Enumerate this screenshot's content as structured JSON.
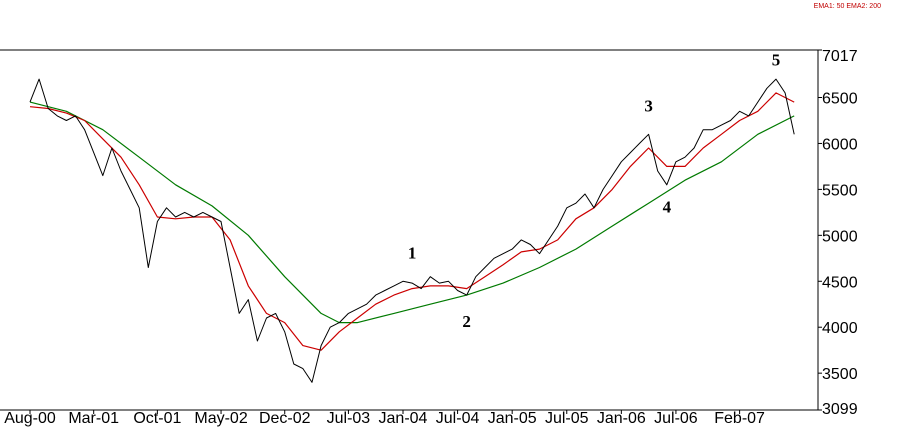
{
  "chart_data": {
    "type": "line",
    "legend": {
      "text": "EMA1: 50 EMA2: 200",
      "placement": "top-right"
    },
    "x_labels": [
      "Aug-00",
      "Mar-01",
      "Oct-01",
      "May-02",
      "Dec-02",
      "Jul-03",
      "Jan-04",
      "Jul-04",
      "Jan-05",
      "Jul-05",
      "Jan-06",
      "Jul-06",
      "Feb-07"
    ],
    "x_range": [
      "Aug-00",
      "Jun-07"
    ],
    "yticks": [
      3099,
      3500,
      4000,
      4500,
      5000,
      5500,
      6000,
      6500,
      7017
    ],
    "ylim": [
      3099,
      7017
    ],
    "grid": false,
    "series": [
      {
        "key": "price",
        "color": "#000000",
        "points": [
          [
            "Aug-00",
            6450
          ],
          [
            "Sep-00",
            6700
          ],
          [
            "Oct-00",
            6380
          ],
          [
            "Nov-00",
            6300
          ],
          [
            "Dec-00",
            6250
          ],
          [
            "Jan-01",
            6300
          ],
          [
            "Feb-01",
            6150
          ],
          [
            "Mar-01",
            5900
          ],
          [
            "Apr-01",
            5650
          ],
          [
            "May-01",
            5950
          ],
          [
            "Jun-01",
            5700
          ],
          [
            "Jul-01",
            5500
          ],
          [
            "Aug-01",
            5300
          ],
          [
            "Sep-01",
            4650
          ],
          [
            "Oct-01",
            5150
          ],
          [
            "Nov-01",
            5300
          ],
          [
            "Dec-01",
            5200
          ],
          [
            "Jan-02",
            5250
          ],
          [
            "Feb-02",
            5200
          ],
          [
            "Mar-02",
            5250
          ],
          [
            "Apr-02",
            5200
          ],
          [
            "May-02",
            5150
          ],
          [
            "Jun-02",
            4650
          ],
          [
            "Jul-02",
            4150
          ],
          [
            "Aug-02",
            4300
          ],
          [
            "Sep-02",
            3850
          ],
          [
            "Oct-02",
            4100
          ],
          [
            "Nov-02",
            4150
          ],
          [
            "Dec-02",
            3950
          ],
          [
            "Jan-03",
            3600
          ],
          [
            "Feb-03",
            3550
          ],
          [
            "Mar-03",
            3400
          ],
          [
            "Apr-03",
            3800
          ],
          [
            "May-03",
            4000
          ],
          [
            "Jun-03",
            4050
          ],
          [
            "Jul-03",
            4150
          ],
          [
            "Aug-03",
            4200
          ],
          [
            "Sep-03",
            4250
          ],
          [
            "Oct-03",
            4350
          ],
          [
            "Nov-03",
            4400
          ],
          [
            "Dec-03",
            4450
          ],
          [
            "Jan-04",
            4500
          ],
          [
            "Feb-04",
            4480
          ],
          [
            "Mar-04",
            4420
          ],
          [
            "Apr-04",
            4550
          ],
          [
            "May-04",
            4480
          ],
          [
            "Jun-04",
            4500
          ],
          [
            "Jul-04",
            4400
          ],
          [
            "Aug-04",
            4350
          ],
          [
            "Sep-04",
            4550
          ],
          [
            "Oct-04",
            4650
          ],
          [
            "Nov-04",
            4750
          ],
          [
            "Dec-04",
            4800
          ],
          [
            "Jan-05",
            4850
          ],
          [
            "Feb-05",
            4950
          ],
          [
            "Mar-05",
            4900
          ],
          [
            "Apr-05",
            4800
          ],
          [
            "May-05",
            4950
          ],
          [
            "Jun-05",
            5100
          ],
          [
            "Jul-05",
            5300
          ],
          [
            "Aug-05",
            5350
          ],
          [
            "Sep-05",
            5450
          ],
          [
            "Oct-05",
            5300
          ],
          [
            "Nov-05",
            5500
          ],
          [
            "Dec-05",
            5650
          ],
          [
            "Jan-06",
            5800
          ],
          [
            "Feb-06",
            5900
          ],
          [
            "Mar-06",
            6000
          ],
          [
            "Apr-06",
            6100
          ],
          [
            "May-06",
            5700
          ],
          [
            "Jun-06",
            5550
          ],
          [
            "Jul-06",
            5800
          ],
          [
            "Aug-06",
            5850
          ],
          [
            "Sep-06",
            5950
          ],
          [
            "Oct-06",
            6150
          ],
          [
            "Nov-06",
            6150
          ],
          [
            "Dec-06",
            6200
          ],
          [
            "Jan-07",
            6250
          ],
          [
            "Feb-07",
            6350
          ],
          [
            "Mar-07",
            6300
          ],
          [
            "Apr-07",
            6450
          ],
          [
            "May-07",
            6600
          ],
          [
            "Jun-07",
            6700
          ],
          [
            "Jul-07",
            6550
          ],
          [
            "Aug-07",
            6100
          ]
        ]
      },
      {
        "key": "ema50",
        "color": "#cc0000",
        "points": [
          [
            "Aug-00",
            6400
          ],
          [
            "Oct-00",
            6380
          ],
          [
            "Dec-00",
            6330
          ],
          [
            "Feb-01",
            6250
          ],
          [
            "Apr-01",
            6050
          ],
          [
            "Jun-01",
            5850
          ],
          [
            "Aug-01",
            5550
          ],
          [
            "Oct-01",
            5200
          ],
          [
            "Dec-01",
            5180
          ],
          [
            "Feb-02",
            5200
          ],
          [
            "Apr-02",
            5200
          ],
          [
            "Jun-02",
            4950
          ],
          [
            "Aug-02",
            4450
          ],
          [
            "Oct-02",
            4150
          ],
          [
            "Dec-02",
            4050
          ],
          [
            "Feb-03",
            3800
          ],
          [
            "Apr-03",
            3750
          ],
          [
            "Jun-03",
            3950
          ],
          [
            "Aug-03",
            4100
          ],
          [
            "Oct-03",
            4250
          ],
          [
            "Dec-03",
            4350
          ],
          [
            "Feb-04",
            4420
          ],
          [
            "Apr-04",
            4450
          ],
          [
            "Jun-04",
            4450
          ],
          [
            "Aug-04",
            4420
          ],
          [
            "Oct-04",
            4550
          ],
          [
            "Dec-04",
            4680
          ],
          [
            "Feb-05",
            4820
          ],
          [
            "Apr-05",
            4850
          ],
          [
            "Jun-05",
            4950
          ],
          [
            "Aug-05",
            5180
          ],
          [
            "Oct-05",
            5300
          ],
          [
            "Dec-05",
            5500
          ],
          [
            "Feb-06",
            5750
          ],
          [
            "Apr-06",
            5950
          ],
          [
            "Jun-06",
            5750
          ],
          [
            "Aug-06",
            5750
          ],
          [
            "Oct-06",
            5950
          ],
          [
            "Dec-06",
            6100
          ],
          [
            "Feb-07",
            6250
          ],
          [
            "Apr-07",
            6350
          ],
          [
            "Jun-07",
            6550
          ],
          [
            "Aug-07",
            6450
          ]
        ]
      },
      {
        "key": "ema200",
        "color": "#007a00",
        "points": [
          [
            "Aug-00",
            6450
          ],
          [
            "Dec-00",
            6350
          ],
          [
            "Apr-01",
            6150
          ],
          [
            "Aug-01",
            5850
          ],
          [
            "Dec-01",
            5550
          ],
          [
            "Apr-02",
            5320
          ],
          [
            "Aug-02",
            5000
          ],
          [
            "Dec-02",
            4550
          ],
          [
            "Apr-03",
            4150
          ],
          [
            "Jun-03",
            4050
          ],
          [
            "Aug-03",
            4050
          ],
          [
            "Dec-03",
            4150
          ],
          [
            "Apr-04",
            4250
          ],
          [
            "Aug-04",
            4350
          ],
          [
            "Dec-04",
            4480
          ],
          [
            "Apr-05",
            4650
          ],
          [
            "Aug-05",
            4850
          ],
          [
            "Dec-05",
            5100
          ],
          [
            "Apr-06",
            5350
          ],
          [
            "Aug-06",
            5600
          ],
          [
            "Dec-06",
            5800
          ],
          [
            "Apr-07",
            6100
          ],
          [
            "Aug-07",
            6300
          ]
        ]
      }
    ],
    "annotations": [
      {
        "text": "1",
        "x": "Feb-04",
        "y": 4750
      },
      {
        "text": "2",
        "x": "Aug-04",
        "y": 4000
      },
      {
        "text": "3",
        "x": "Apr-06",
        "y": 6350
      },
      {
        "text": "4",
        "x": "Jun-06",
        "y": 5250
      },
      {
        "text": "5",
        "x": "Jun-07",
        "y": 6850
      }
    ]
  }
}
